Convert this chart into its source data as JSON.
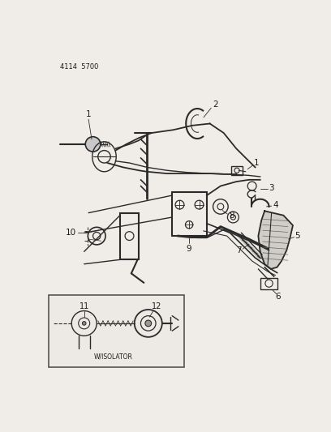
{
  "title_code": "4114  5700",
  "bg_color": "#f0ede8",
  "line_color": "#2a2a2a",
  "text_color": "#1a1a1a",
  "fig_width": 4.08,
  "fig_height": 5.33,
  "dpi": 100
}
